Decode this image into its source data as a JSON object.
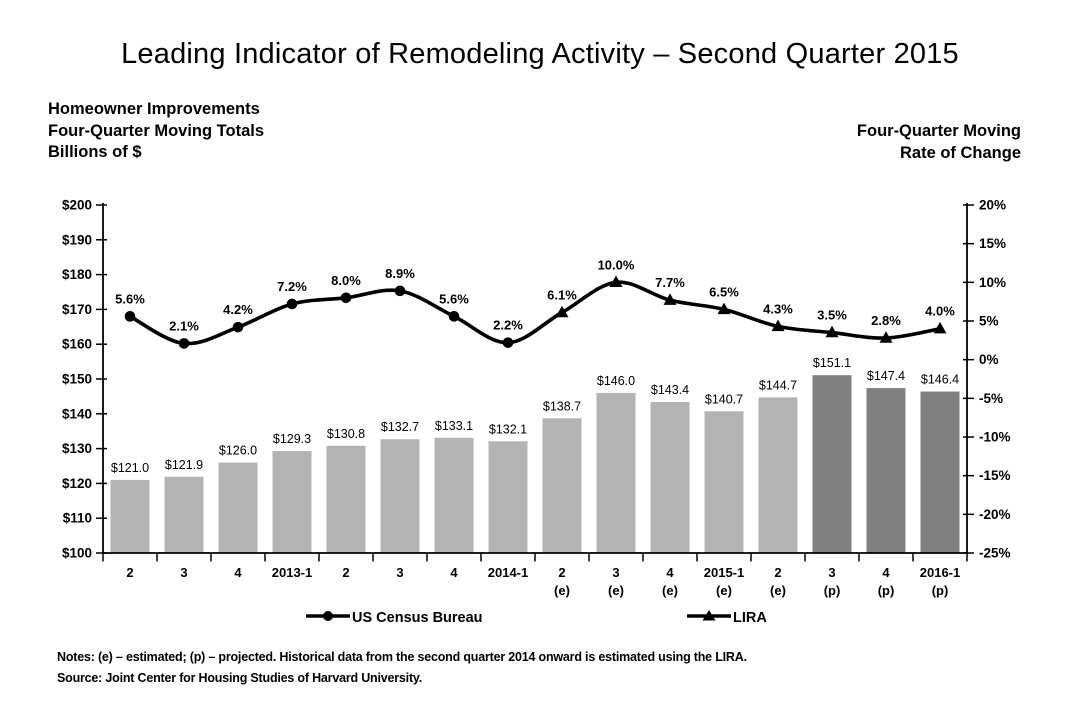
{
  "title": "Leading Indicator of Remodeling Activity – Second Quarter 2015",
  "left_header": {
    "lines": [
      "Homeowner Improvements",
      "Four-Quarter Moving Totals",
      "Billions of $"
    ]
  },
  "right_header": {
    "lines": [
      "Four-Quarter Moving",
      "Rate of Change"
    ]
  },
  "legend": {
    "items": [
      {
        "label": "US Census Bureau",
        "marker": "circle"
      },
      {
        "label": "LIRA",
        "marker": "triangle"
      }
    ]
  },
  "footnotes": {
    "notes": "Notes: (e) – estimated; (p) – projected.  Historical data from the second quarter 2014 onward is estimated using the LIRA.",
    "source": "Source: Joint Center for Housing Studies of Harvard University."
  },
  "chart_data": {
    "type": "bar+line",
    "categories": [
      {
        "q": "2",
        "s": ""
      },
      {
        "q": "3",
        "s": ""
      },
      {
        "q": "4",
        "s": ""
      },
      {
        "q": "2013-1",
        "s": ""
      },
      {
        "q": "2",
        "s": ""
      },
      {
        "q": "3",
        "s": ""
      },
      {
        "q": "4",
        "s": ""
      },
      {
        "q": "2014-1",
        "s": ""
      },
      {
        "q": "2",
        "s": "(e)"
      },
      {
        "q": "3",
        "s": "(e)"
      },
      {
        "q": "4",
        "s": "(e)"
      },
      {
        "q": "2015-1",
        "s": "(e)"
      },
      {
        "q": "2",
        "s": "(e)"
      },
      {
        "q": "3",
        "s": "(p)"
      },
      {
        "q": "4",
        "s": "(p)"
      },
      {
        "q": "2016-1",
        "s": "(p)"
      }
    ],
    "series": [
      {
        "name": "Homeowner Improvements Four-Quarter Moving Totals (Billions of $)",
        "type": "bar",
        "axis": "left",
        "values": [
          121.0,
          121.9,
          126.0,
          129.3,
          130.8,
          132.7,
          133.1,
          132.1,
          138.7,
          146.0,
          143.4,
          140.7,
          144.7,
          151.1,
          147.4,
          146.4
        ],
        "labels": [
          "$121.0",
          "$121.9",
          "$126.0",
          "$129.3",
          "$130.8",
          "$132.7",
          "$133.1",
          "$132.1",
          "$138.7",
          "$146.0",
          "$143.4",
          "$140.7",
          "$144.7",
          "$151.1",
          "$147.4",
          "$146.4"
        ],
        "bar_styles": [
          "light",
          "light",
          "light",
          "light",
          "light",
          "light",
          "light",
          "light",
          "light",
          "light",
          "light",
          "light",
          "light",
          "dark",
          "dark",
          "dark"
        ]
      },
      {
        "name": "Four-Quarter Moving Rate of Change",
        "type": "line",
        "axis": "right",
        "values": [
          5.6,
          2.1,
          4.2,
          7.2,
          8.0,
          8.9,
          5.6,
          2.2,
          6.1,
          10.0,
          7.7,
          6.5,
          4.3,
          3.5,
          2.8,
          4.0
        ],
        "labels": [
          "5.6%",
          "2.1%",
          "4.2%",
          "7.2%",
          "8.0%",
          "8.9%",
          "5.6%",
          "2.2%",
          "6.1%",
          "10.0%",
          "7.7%",
          "6.5%",
          "4.3%",
          "3.5%",
          "2.8%",
          "4.0%"
        ],
        "markers": [
          "circle",
          "circle",
          "circle",
          "circle",
          "circle",
          "circle",
          "circle",
          "circle",
          "triangle",
          "triangle",
          "triangle",
          "triangle",
          "triangle",
          "triangle",
          "triangle",
          "triangle"
        ]
      }
    ],
    "left_axis": {
      "min": 100,
      "max": 200,
      "step": 10,
      "tick_labels": [
        "$200",
        "$190",
        "$180",
        "$170",
        "$160",
        "$150",
        "$140",
        "$130",
        "$120",
        "$110",
        "$100"
      ]
    },
    "right_axis": {
      "min": -25,
      "max": 20,
      "step": 5,
      "tick_labels": [
        "20%",
        "15%",
        "10%",
        "5%",
        "0%",
        "-5%",
        "-10%",
        "-15%",
        "-20%",
        "-25%"
      ]
    },
    "legend_position": "bottom",
    "grid": false,
    "colors": {
      "bar_light": "#b3b3b3",
      "bar_dark": "#808080",
      "line": "#000000"
    }
  }
}
